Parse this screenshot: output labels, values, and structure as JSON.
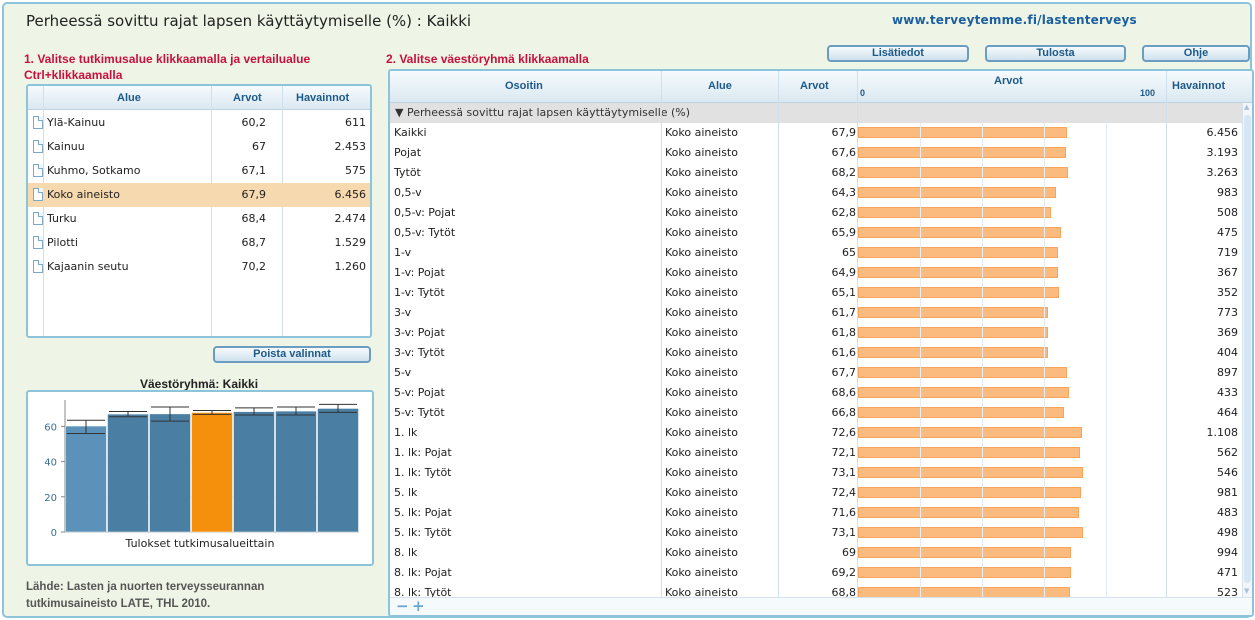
{
  "header": {
    "title": "Perheessä sovittu rajat lapsen käyttäytymiselle (%) : Kaikki",
    "site_link": "www.terveytemme.fi/lastenterveys"
  },
  "step1_label": "1. Valitse tutkimusalue klikkaamalla ja vertailualue Ctrl+klikkaamalla",
  "step2_label": "2. Valitse väestöryhmä klikkaamalla",
  "buttons": {
    "info": "Lisätiedot",
    "print": "Tulosta",
    "help": "Ohje",
    "clear": "Poista valinnat"
  },
  "area_table": {
    "columns": [
      "Alue",
      "Arvot",
      "Havainnot"
    ],
    "rows": [
      {
        "name": "Ylä-Kainuu",
        "value": "60,2",
        "count": "611",
        "selected": false
      },
      {
        "name": "Kainuu",
        "value": "67",
        "count": "2.453",
        "selected": false
      },
      {
        "name": "Kuhmo, Sotkamo",
        "value": "67,1",
        "count": "575",
        "selected": false
      },
      {
        "name": "Koko aineisto",
        "value": "67,9",
        "count": "6.456",
        "selected": true
      },
      {
        "name": "Turku",
        "value": "68,4",
        "count": "2.474",
        "selected": false
      },
      {
        "name": "Pilotti",
        "value": "68,7",
        "count": "1.529",
        "selected": false
      },
      {
        "name": "Kajaanin seutu",
        "value": "70,2",
        "count": "1.260",
        "selected": false
      }
    ]
  },
  "mini_chart": {
    "title": "Väestöryhmä: Kaikki",
    "xlabel": "Tulokset tutkimusalueittain",
    "colors": {
      "normal": "#4a7fa3",
      "first": "#5c91ba",
      "selected": "#f4900c"
    }
  },
  "chart_data": {
    "type": "bar",
    "title": "Väestöryhmä: Kaikki",
    "xlabel": "Tulokset tutkimusalueittain",
    "ylabel": "",
    "ylim": [
      0,
      75
    ],
    "yticks": [
      0,
      20,
      40,
      60
    ],
    "values": [
      60.2,
      67,
      67.1,
      67.9,
      68.4,
      68.7,
      70.2
    ],
    "ci_low": [
      56,
      65.5,
      63,
      66.8,
      66.5,
      66.5,
      68
    ],
    "ci_high": [
      63.5,
      68.5,
      71,
      69,
      70.5,
      71,
      72.5
    ],
    "highlight_index": 3
  },
  "source": "Lähde: Lasten ja nuorten terveysseurannan tutkimusaineisto LATE, THL 2010.",
  "grid": {
    "columns": {
      "indicator": "Osoitin",
      "area": "Alue",
      "values": "Arvot",
      "bar": "Arvot",
      "count": "Havainnot"
    },
    "bar_min": "0",
    "bar_max": "100",
    "group_label": "▼ Perheessä sovittu rajat lapsen käyttäytymiselle (%)",
    "bar_color": "#fcbb7e",
    "rows": [
      {
        "indicator": "Kaikki",
        "area": "Koko aineisto",
        "value": "67,9",
        "v": 67.9,
        "count": "6.456"
      },
      {
        "indicator": "Pojat",
        "area": "Koko aineisto",
        "value": "67,6",
        "v": 67.6,
        "count": "3.193"
      },
      {
        "indicator": "Tytöt",
        "area": "Koko aineisto",
        "value": "68,2",
        "v": 68.2,
        "count": "3.263"
      },
      {
        "indicator": "0,5-v",
        "area": "Koko aineisto",
        "value": "64,3",
        "v": 64.3,
        "count": "983"
      },
      {
        "indicator": "0,5-v: Pojat",
        "area": "Koko aineisto",
        "value": "62,8",
        "v": 62.8,
        "count": "508"
      },
      {
        "indicator": "0,5-v: Tytöt",
        "area": "Koko aineisto",
        "value": "65,9",
        "v": 65.9,
        "count": "475"
      },
      {
        "indicator": "1-v",
        "area": "Koko aineisto",
        "value": "65",
        "v": 65,
        "count": "719"
      },
      {
        "indicator": "1-v: Pojat",
        "area": "Koko aineisto",
        "value": "64,9",
        "v": 64.9,
        "count": "367"
      },
      {
        "indicator": "1-v: Tytöt",
        "area": "Koko aineisto",
        "value": "65,1",
        "v": 65.1,
        "count": "352"
      },
      {
        "indicator": "3-v",
        "area": "Koko aineisto",
        "value": "61,7",
        "v": 61.7,
        "count": "773"
      },
      {
        "indicator": "3-v: Pojat",
        "area": "Koko aineisto",
        "value": "61,8",
        "v": 61.8,
        "count": "369"
      },
      {
        "indicator": "3-v: Tytöt",
        "area": "Koko aineisto",
        "value": "61,6",
        "v": 61.6,
        "count": "404"
      },
      {
        "indicator": "5-v",
        "area": "Koko aineisto",
        "value": "67,7",
        "v": 67.7,
        "count": "897"
      },
      {
        "indicator": "5-v: Pojat",
        "area": "Koko aineisto",
        "value": "68,6",
        "v": 68.6,
        "count": "433"
      },
      {
        "indicator": "5-v: Tytöt",
        "area": "Koko aineisto",
        "value": "66,8",
        "v": 66.8,
        "count": "464"
      },
      {
        "indicator": "1. lk",
        "area": "Koko aineisto",
        "value": "72,6",
        "v": 72.6,
        "count": "1.108"
      },
      {
        "indicator": "1. lk: Pojat",
        "area": "Koko aineisto",
        "value": "72,1",
        "v": 72.1,
        "count": "562"
      },
      {
        "indicator": "1. lk: Tytöt",
        "area": "Koko aineisto",
        "value": "73,1",
        "v": 73.1,
        "count": "546"
      },
      {
        "indicator": "5. lk",
        "area": "Koko aineisto",
        "value": "72,4",
        "v": 72.4,
        "count": "981"
      },
      {
        "indicator": "5. lk: Pojat",
        "area": "Koko aineisto",
        "value": "71,6",
        "v": 71.6,
        "count": "483"
      },
      {
        "indicator": "5. lk: Tytöt",
        "area": "Koko aineisto",
        "value": "73,1",
        "v": 73.1,
        "count": "498"
      },
      {
        "indicator": "8. lk",
        "area": "Koko aineisto",
        "value": "69",
        "v": 69,
        "count": "994"
      },
      {
        "indicator": "8. lk: Pojat",
        "area": "Koko aineisto",
        "value": "69,2",
        "v": 69.2,
        "count": "471"
      },
      {
        "indicator": "8. lk: Tytöt",
        "area": "Koko aineisto",
        "value": "68,8",
        "v": 68.8,
        "count": "523"
      }
    ]
  }
}
